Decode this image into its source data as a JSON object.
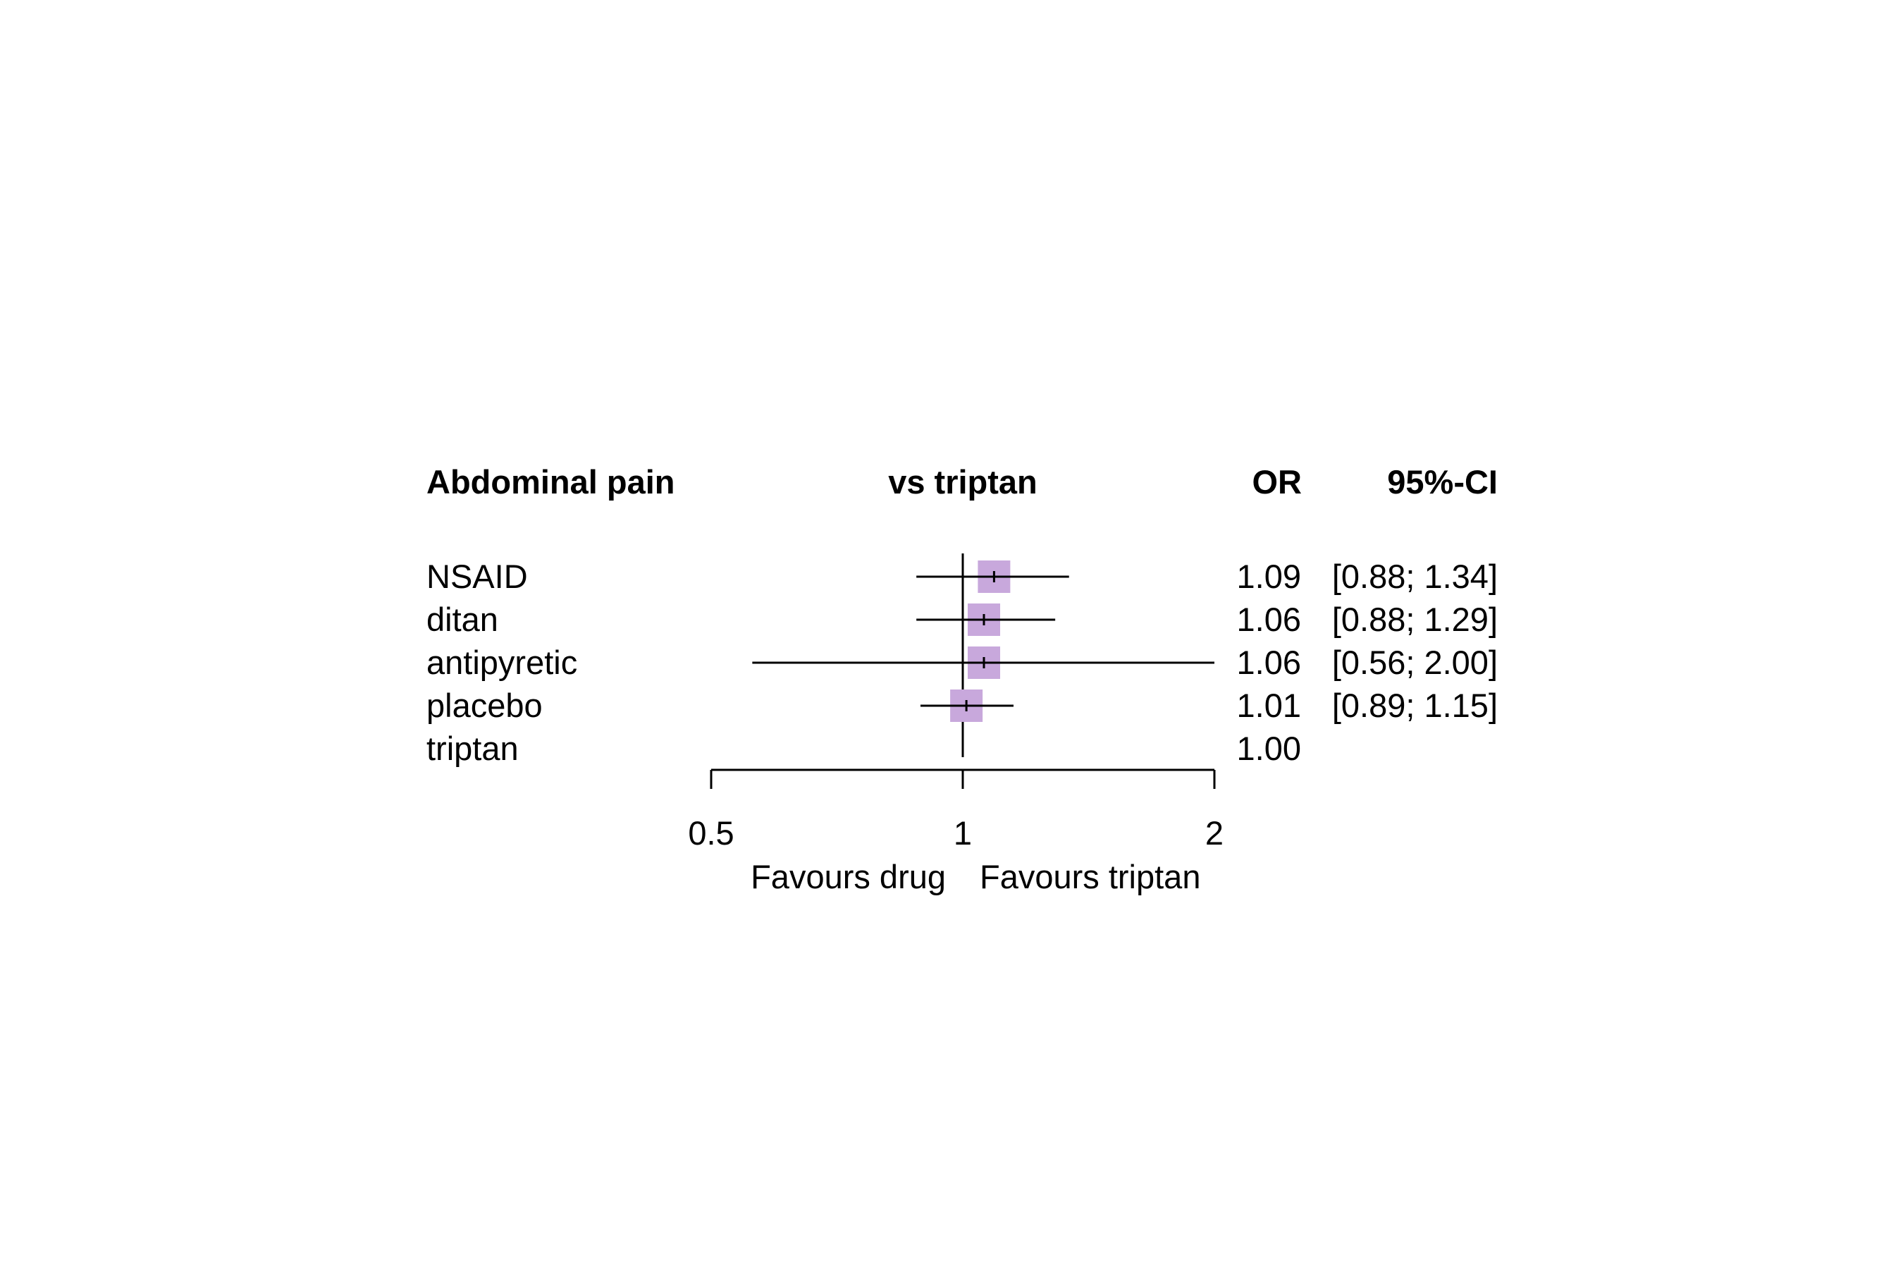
{
  "chart_data": {
    "type": "forest",
    "headers": {
      "outcome": "Abdominal pain",
      "comparison": "vs triptan",
      "effect": "OR",
      "ci": "95%-CI"
    },
    "rows": [
      {
        "label": "NSAID",
        "or": 1.09,
        "lower": 0.88,
        "upper": 1.34,
        "or_text": "1.09",
        "ci_text": "[0.88; 1.34]",
        "weight": 1.0
      },
      {
        "label": "ditan",
        "or": 1.06,
        "lower": 0.88,
        "upper": 1.29,
        "or_text": "1.06",
        "ci_text": "[0.88; 1.29]",
        "weight": 1.0
      },
      {
        "label": "antipyretic",
        "or": 1.06,
        "lower": 0.56,
        "upper": 2.0,
        "or_text": "1.06",
        "ci_text": "[0.56; 2.00]",
        "weight": 1.0
      },
      {
        "label": "placebo",
        "or": 1.01,
        "lower": 0.89,
        "upper": 1.15,
        "or_text": "1.01",
        "ci_text": "[0.89; 1.15]",
        "weight": 1.0
      },
      {
        "label": "triptan",
        "or": 1.0,
        "lower": null,
        "upper": null,
        "or_text": "1.00",
        "ci_text": "",
        "weight": 0
      }
    ],
    "x_axis": {
      "scale": "log",
      "range": [
        0.5,
        2
      ],
      "ticks": [
        0.5,
        1,
        2
      ],
      "tick_labels": [
        "0.5",
        "1",
        "2"
      ],
      "reference": 1
    },
    "favours_left": "Favours drug",
    "favours_right": "Favours triptan",
    "marker_color": "#c8a8dc"
  }
}
